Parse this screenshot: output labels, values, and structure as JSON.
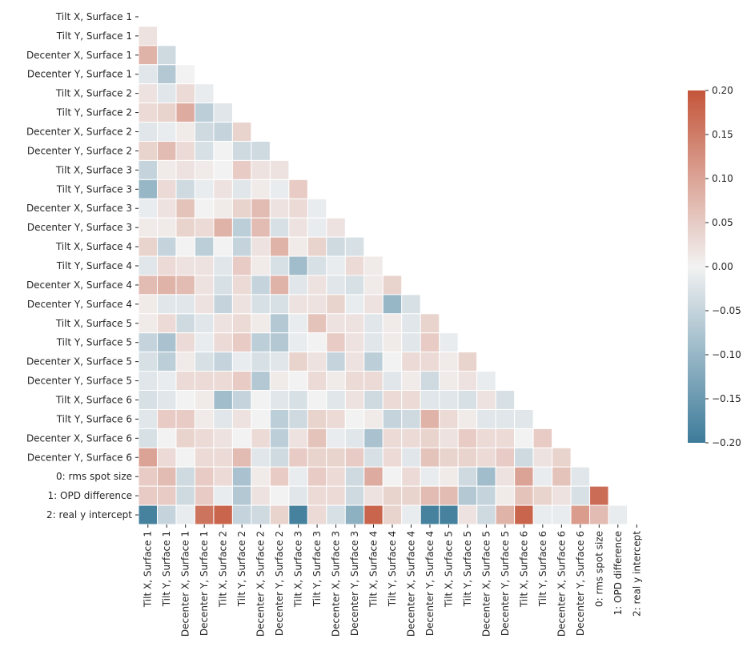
{
  "chart_data": {
    "type": "heatmap",
    "title": "",
    "xlabel": "",
    "ylabel": "",
    "mask": "upper-triangle-including-diagonal",
    "labels": [
      "Tilt X, Surface 1",
      "Tilt Y, Surface 1",
      "Decenter X, Surface 1",
      "Decenter Y, Surface 1",
      "Tilt X, Surface 2",
      "Tilt Y, Surface 2",
      "Decenter X, Surface 2",
      "Decenter Y, Surface 2",
      "Tilt X, Surface 3",
      "Tilt Y, Surface 3",
      "Decenter X, Surface 3",
      "Decenter Y, Surface 3",
      "Tilt X, Surface 4",
      "Tilt Y, Surface 4",
      "Decenter X, Surface 4",
      "Decenter Y, Surface 4",
      "Tilt X, Surface 5",
      "Tilt Y, Surface 5",
      "Decenter X, Surface 5",
      "Decenter Y, Surface 5",
      "Tilt X, Surface 6",
      "Tilt Y, Surface 6",
      "Decenter X, Surface 6",
      "Decenter Y, Surface 6",
      "0: rms spot size",
      "1: OPD difference",
      "2: real y intercept"
    ],
    "values": [
      [],
      [
        0.02
      ],
      [
        0.08,
        -0.04
      ],
      [
        -0.02,
        -0.07,
        0.0
      ],
      [
        0.02,
        -0.02,
        0.03,
        -0.01
      ],
      [
        0.03,
        0.04,
        0.09,
        -0.06,
        -0.02
      ],
      [
        -0.02,
        -0.01,
        0.01,
        -0.04,
        -0.05,
        0.04
      ],
      [
        0.04,
        0.07,
        0.03,
        -0.03,
        0.0,
        -0.04,
        -0.04
      ],
      [
        -0.05,
        0.01,
        0.02,
        0.01,
        0.0,
        0.05,
        0.02,
        0.02
      ],
      [
        -0.1,
        0.03,
        -0.04,
        -0.01,
        0.02,
        -0.02,
        0.01,
        -0.01,
        0.05
      ],
      [
        -0.01,
        0.02,
        0.06,
        0.0,
        0.01,
        0.04,
        0.07,
        0.02,
        0.03,
        -0.01
      ],
      [
        0.01,
        0.01,
        0.04,
        0.03,
        0.08,
        -0.06,
        0.07,
        -0.03,
        0.02,
        -0.01,
        0.02
      ],
      [
        0.04,
        -0.05,
        0.0,
        -0.06,
        0.0,
        -0.05,
        0.02,
        0.08,
        0.01,
        0.04,
        -0.04,
        -0.03
      ],
      [
        -0.02,
        0.03,
        0.02,
        0.02,
        -0.02,
        0.05,
        0.01,
        -0.03,
        -0.09,
        -0.03,
        -0.01,
        0.03,
        0.01
      ],
      [
        0.07,
        0.08,
        0.07,
        0.02,
        -0.03,
        0.03,
        -0.05,
        0.08,
        -0.02,
        0.02,
        -0.02,
        -0.03,
        0.01,
        0.04
      ],
      [
        0.01,
        -0.02,
        -0.02,
        0.02,
        -0.05,
        0.02,
        -0.03,
        -0.03,
        0.02,
        0.02,
        0.04,
        -0.01,
        0.02,
        -0.1,
        -0.03
      ],
      [
        0.01,
        0.03,
        -0.04,
        -0.02,
        0.02,
        0.03,
        0.01,
        -0.07,
        -0.01,
        0.06,
        0.02,
        0.02,
        -0.02,
        0.01,
        -0.02,
        0.04
      ],
      [
        -0.05,
        -0.08,
        0.03,
        -0.01,
        0.03,
        0.05,
        -0.06,
        -0.07,
        -0.01,
        0.0,
        0.05,
        0.02,
        -0.02,
        0.01,
        -0.02,
        0.05,
        -0.01
      ],
      [
        -0.03,
        -0.06,
        0.01,
        -0.03,
        -0.05,
        -0.01,
        -0.03,
        -0.02,
        0.04,
        0.02,
        -0.05,
        0.02,
        -0.06,
        0.0,
        0.03,
        0.03,
        0.01,
        0.04
      ],
      [
        -0.02,
        -0.01,
        0.03,
        0.03,
        0.03,
        0.05,
        -0.07,
        0.01,
        0.0,
        0.03,
        0.01,
        0.03,
        0.03,
        -0.02,
        0.01,
        -0.04,
        0.01,
        0.02,
        -0.01
      ],
      [
        -0.03,
        -0.02,
        0.0,
        0.01,
        -0.09,
        -0.05,
        0.0,
        -0.02,
        -0.03,
        0.0,
        -0.02,
        0.02,
        -0.04,
        0.03,
        0.03,
        -0.02,
        -0.02,
        -0.03,
        0.02,
        -0.03
      ],
      [
        -0.02,
        0.05,
        0.05,
        0.01,
        -0.02,
        0.02,
        0.0,
        -0.06,
        -0.04,
        0.04,
        0.03,
        0.0,
        0.01,
        -0.05,
        -0.04,
        0.08,
        0.03,
        0.01,
        -0.02,
        -0.02,
        -0.02
      ],
      [
        -0.03,
        0.0,
        0.04,
        0.03,
        0.02,
        0.0,
        0.03,
        -0.06,
        0.02,
        0.06,
        -0.01,
        -0.02,
        -0.08,
        0.03,
        0.03,
        0.04,
        0.02,
        0.05,
        0.03,
        0.03,
        0.0,
        0.05
      ],
      [
        0.1,
        0.03,
        0.0,
        0.03,
        0.03,
        0.07,
        -0.02,
        -0.04,
        0.05,
        0.04,
        0.04,
        0.05,
        -0.03,
        0.03,
        -0.02,
        0.06,
        0.04,
        0.04,
        0.03,
        0.05,
        -0.04,
        0.02,
        0.04
      ],
      [
        0.05,
        0.07,
        -0.04,
        0.05,
        0.03,
        -0.08,
        0.01,
        0.05,
        -0.01,
        0.05,
        0.03,
        -0.04,
        0.09,
        0.0,
        0.03,
        -0.01,
        0.01,
        -0.04,
        -0.09,
        0.02,
        0.1,
        -0.01,
        0.06,
        -0.02
      ],
      [
        0.05,
        0.05,
        -0.04,
        0.05,
        -0.01,
        -0.07,
        0.02,
        0.0,
        -0.02,
        0.03,
        0.03,
        -0.04,
        0.02,
        0.04,
        0.04,
        0.07,
        0.07,
        -0.07,
        -0.05,
        0.01,
        0.06,
        0.04,
        0.02,
        -0.03,
        0.17
      ],
      [
        -0.19,
        -0.05,
        -0.01,
        0.16,
        0.18,
        -0.05,
        -0.04,
        0.04,
        -0.19,
        0.03,
        -0.03,
        -0.11,
        0.18,
        0.04,
        -0.01,
        -0.19,
        -0.19,
        0.02,
        -0.04,
        0.08,
        0.18,
        -0.01,
        -0.01,
        0.11,
        0.07,
        -0.01
      ]
    ],
    "colorbar": {
      "range": [
        -0.2,
        0.2
      ],
      "ticks": [
        "0.20",
        "0.15",
        "0.10",
        "0.05",
        "0.00",
        "−0.05",
        "−0.10",
        "−0.15",
        "−0.20"
      ],
      "tick_values": [
        0.2,
        0.15,
        0.1,
        0.05,
        0.0,
        -0.05,
        -0.1,
        -0.15,
        -0.2
      ],
      "colormap": "diverging blue-white-red",
      "color_low": "#3d7b9a",
      "color_mid": "#f2f2f2",
      "color_high": "#c4553a"
    },
    "grid": false,
    "legend": "colorbar-right"
  }
}
